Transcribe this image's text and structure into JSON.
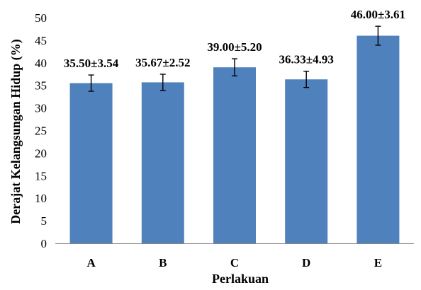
{
  "chart_data": {
    "type": "bar",
    "categories": [
      "A",
      "B",
      "C",
      "D",
      "E"
    ],
    "values": [
      35.5,
      35.67,
      39.0,
      36.33,
      46.0
    ],
    "errors": [
      1.8,
      1.8,
      1.9,
      1.8,
      2.1
    ],
    "data_labels": [
      "35.50±3.54",
      "35.67±2.52",
      "39.00±5.20",
      "36.33±4.93",
      "46.00±3.61"
    ],
    "xlabel": "Perlakuan",
    "ylabel": "Derajat Kelangsungan Hidup (%)",
    "ylim": [
      0,
      50
    ],
    "yticks": [
      0,
      5,
      10,
      15,
      20,
      25,
      30,
      35,
      40,
      45,
      50
    ],
    "grid": false,
    "bar_color": "#4f81bd"
  }
}
